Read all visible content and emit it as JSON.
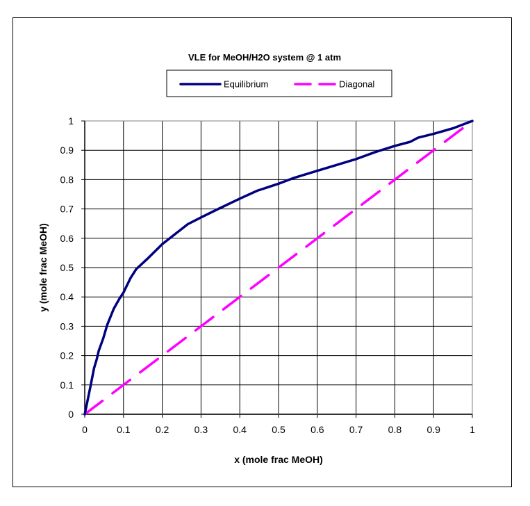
{
  "chart_data": {
    "type": "line",
    "title": "VLE for MeOH/H2O system @ 1 atm",
    "xlabel": "x (mole frac MeOH)",
    "ylabel": "y (mole frac MeOH)",
    "xlim": [
      0,
      1
    ],
    "ylim": [
      0,
      1
    ],
    "x_ticks": [
      "0",
      "0.1",
      "0.2",
      "0.3",
      "0.4",
      "0.5",
      "0.6",
      "0.7",
      "0.8",
      "0.9",
      "1"
    ],
    "y_ticks": [
      "0",
      "0.1",
      "0.2",
      "0.3",
      "0.4",
      "0.5",
      "0.6",
      "0.7",
      "0.8",
      "0.9",
      "1"
    ],
    "grid": true,
    "legend_position": "top",
    "series": [
      {
        "name": "Equilibrium",
        "color": "#000080",
        "style": "solid",
        "x": [
          0,
          0.015,
          0.024,
          0.031,
          0.034,
          0.036,
          0.048,
          0.058,
          0.075,
          0.09,
          0.1,
          0.118,
          0.133,
          0.16,
          0.2,
          0.266,
          0.3,
          0.343,
          0.4,
          0.445,
          0.5,
          0.54,
          0.6,
          0.65,
          0.7,
          0.75,
          0.8,
          0.84,
          0.86,
          0.9,
          0.95,
          1.0
        ],
        "y": [
          0,
          0.097,
          0.157,
          0.188,
          0.205,
          0.216,
          0.26,
          0.305,
          0.36,
          0.395,
          0.415,
          0.464,
          0.495,
          0.528,
          0.58,
          0.648,
          0.671,
          0.699,
          0.735,
          0.762,
          0.786,
          0.806,
          0.83,
          0.85,
          0.87,
          0.894,
          0.915,
          0.929,
          0.943,
          0.956,
          0.975,
          1.0
        ]
      },
      {
        "name": "Diagonal",
        "color": "#FF00FF",
        "style": "dashed",
        "x": [
          0,
          1
        ],
        "y": [
          0,
          1
        ]
      }
    ]
  },
  "legend": {
    "items": [
      {
        "label": "Equilibrium",
        "color": "#000080",
        "style": "solid"
      },
      {
        "label": "Diagonal",
        "color": "#FF00FF",
        "style": "dashed"
      }
    ]
  }
}
